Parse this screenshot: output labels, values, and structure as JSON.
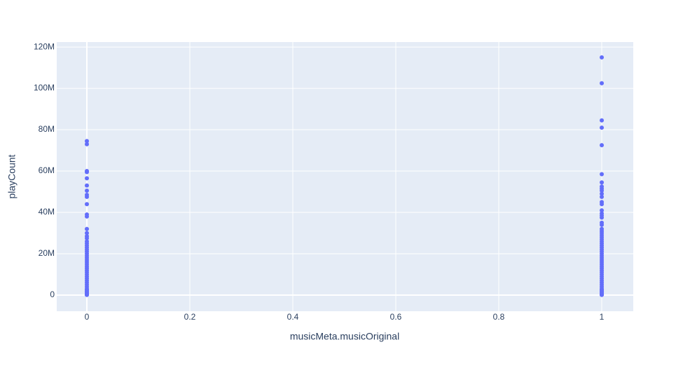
{
  "chart_data": {
    "type": "scatter",
    "x_label": "musicMeta.musicOriginal",
    "y_label": "playCount",
    "color": "#636efa",
    "grid": true,
    "xlim": [
      -0.0585,
      1.0612
    ],
    "ylim": [
      -7800000,
      122400000
    ],
    "xticks": [
      0,
      0.2,
      0.4,
      0.6,
      0.8,
      1
    ],
    "yticks": [
      0,
      {
        "value": 20000000,
        "label": "20M"
      },
      {
        "value": 40000000,
        "label": "40M"
      },
      {
        "value": 60000000,
        "label": "60M"
      },
      {
        "value": 80000000,
        "label": "80M"
      },
      {
        "value": 100000000,
        "label": "100M"
      },
      {
        "value": 120000000,
        "label": "120M"
      }
    ],
    "x": [
      0,
      0,
      0,
      0,
      0,
      0,
      0,
      0,
      0,
      0,
      0,
      0,
      0,
      0,
      0,
      0,
      0,
      0,
      0,
      0,
      0,
      0,
      0,
      0,
      0,
      0,
      0,
      0,
      0,
      0,
      0,
      0,
      0,
      0,
      0,
      0,
      0,
      0,
      0,
      0,
      0,
      0,
      0,
      0,
      0,
      0,
      0,
      1,
      1,
      1,
      1,
      1,
      1,
      1,
      1,
      1,
      1,
      1,
      1,
      1,
      1,
      1,
      1,
      1,
      1,
      1,
      1,
      1,
      1,
      1,
      1,
      1,
      1,
      1,
      1,
      1,
      1,
      1,
      1,
      1,
      1,
      1,
      1,
      1,
      1,
      1,
      1,
      1,
      1,
      1,
      1,
      1,
      1,
      1,
      1,
      1,
      1,
      1,
      1,
      1,
      1,
      1,
      1,
      1
    ],
    "values": [
      74500000,
      73000000,
      60000000,
      59500000,
      56500000,
      53000000,
      50500000,
      48500000,
      47500000,
      44000000,
      39000000,
      38000000,
      32000000,
      30000000,
      28500000,
      27500000,
      26000000,
      25000000,
      24000000,
      23000000,
      22000000,
      21000000,
      20000000,
      19000000,
      18000000,
      17000000,
      16000000,
      15000000,
      14000000,
      13000000,
      12000000,
      11000000,
      10000000,
      9000000,
      8000000,
      7000000,
      6000000,
      5000000,
      4000000,
      3000000,
      2500000,
      2000000,
      1500000,
      1000000,
      500000,
      200000,
      100000,
      115000000,
      102500000,
      84500000,
      81000000,
      72500000,
      58500000,
      54500000,
      52500000,
      51500000,
      50500000,
      49000000,
      47500000,
      45000000,
      44000000,
      41000000,
      39500000,
      38500000,
      37500000,
      35000000,
      34000000,
      32000000,
      31000000,
      30000000,
      29000000,
      28000000,
      27000000,
      26000000,
      25000000,
      24000000,
      23000000,
      22000000,
      21000000,
      20000000,
      19000000,
      18000000,
      17000000,
      16000000,
      15000000,
      14000000,
      13000000,
      12000000,
      11000000,
      10000000,
      9000000,
      8000000,
      7000000,
      6000000,
      5000000,
      4000000,
      3000000,
      2500000,
      2000000,
      1500000,
      1000000,
      500000,
      200000,
      100000
    ]
  }
}
